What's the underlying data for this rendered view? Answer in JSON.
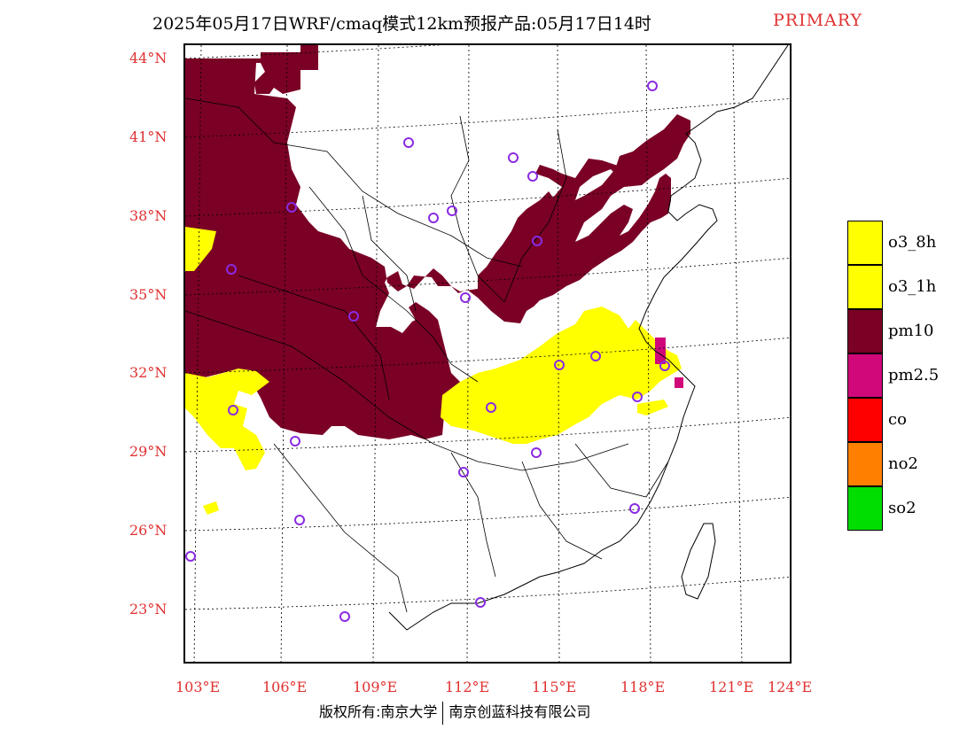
{
  "title": "2025年05月17日WRF/cmaq模式12km预报产品:05月17日14时",
  "tag": "PRIMARY",
  "lat_labels": [
    "44°N",
    "41°N",
    "38°N",
    "35°N",
    "32°N",
    "29°N",
    "26°N",
    "23°N"
  ],
  "lon_labels": [
    "103°E",
    "106°E",
    "109°E",
    "112°E",
    "115°E",
    "118°E",
    "121°E",
    "124°E"
  ],
  "legend": [
    {
      "label": "o3_8h",
      "color": "#ffff00"
    },
    {
      "label": "o3_1h",
      "color": "#ffff00"
    },
    {
      "label": "pm10",
      "color": "#7a0026"
    },
    {
      "label": "pm2.5",
      "color": "#d0087a"
    },
    {
      "label": "co",
      "color": "#ff0000"
    },
    {
      "label": "no2",
      "color": "#ff8000"
    },
    {
      "label": "so2",
      "color": "#00dd00"
    }
  ],
  "copyright_left": "版权所有:南京大学",
  "copyright_right": "南京创蓝科技有限公司",
  "colors": {
    "pm10": "#7a0026",
    "o3": "#ffff00",
    "pm25": "#d0087a",
    "station": "#8a2be2",
    "label": "#e03030"
  }
}
